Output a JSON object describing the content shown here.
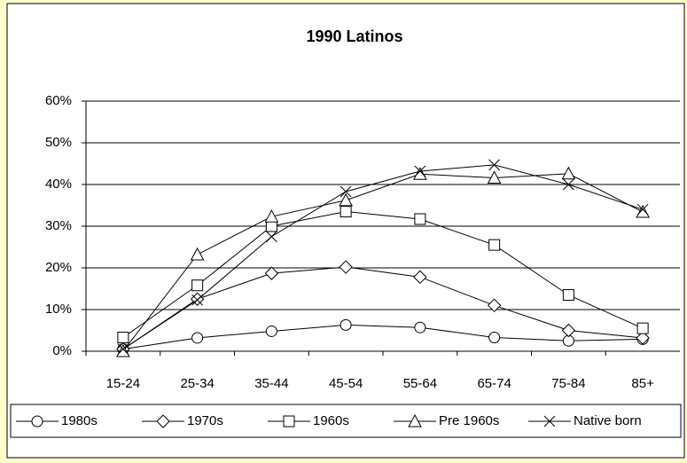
{
  "chart_data": {
    "type": "line",
    "title": "1990 Latinos",
    "categories": [
      "15-24",
      "25-34",
      "35-44",
      "45-54",
      "55-64",
      "65-74",
      "75-84",
      "85+"
    ],
    "series": [
      {
        "name": "1980s",
        "marker": "circle",
        "color": "#000000",
        "values": [
          0.5,
          3.2,
          4.8,
          6.3,
          5.7,
          3.3,
          2.5,
          2.9
        ]
      },
      {
        "name": "1970s",
        "marker": "diamond",
        "color": "#000000",
        "values": [
          0.5,
          12.5,
          18.7,
          20.2,
          17.8,
          11,
          5,
          3.2
        ]
      },
      {
        "name": "1960s",
        "marker": "square",
        "color": "#000000",
        "values": [
          3.3,
          15.8,
          30,
          33.5,
          31.7,
          25.5,
          13.5,
          5.5
        ]
      },
      {
        "name": "Pre 1960s",
        "marker": "triangle",
        "color": "#000000",
        "values": [
          0,
          23.2,
          32.3,
          36.2,
          42.5,
          41.6,
          42.6,
          33.4
        ]
      },
      {
        "name": "Native born",
        "marker": "x",
        "color": "#000000",
        "values": [
          0.5,
          12.3,
          27.5,
          38.3,
          43.2,
          44.7,
          40,
          34
        ]
      }
    ],
    "ylim": [
      0,
      60
    ],
    "yticks": [
      {
        "value": 0,
        "label": "0%"
      },
      {
        "value": 10,
        "label": "10%"
      },
      {
        "value": 20,
        "label": "20%"
      },
      {
        "value": 30,
        "label": "30%"
      },
      {
        "value": 40,
        "label": "40%"
      },
      {
        "value": 50,
        "label": "50%"
      },
      {
        "value": 60,
        "label": "60%"
      }
    ],
    "grid": true,
    "legend": "bottom"
  }
}
